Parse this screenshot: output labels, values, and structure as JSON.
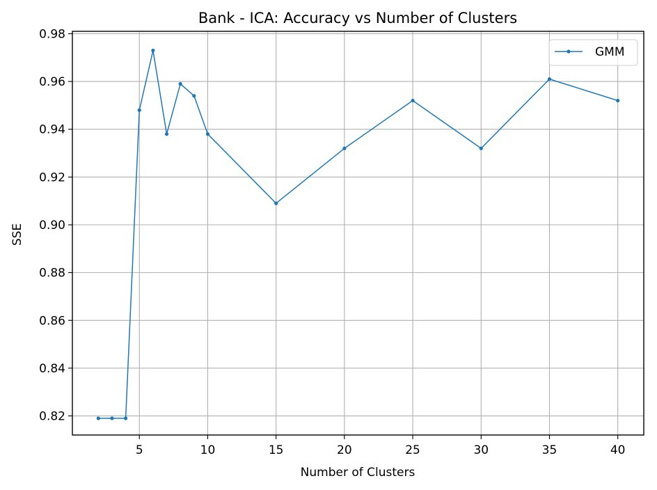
{
  "chart_data": {
    "type": "line",
    "title": "Bank - ICA: Accuracy vs Number of Clusters",
    "xlabel": "Number of Clusters",
    "ylabel": "SSE",
    "xlim": [
      0.1,
      41.9
    ],
    "ylim": [
      0.812,
      0.981
    ],
    "xticks": [
      5,
      10,
      15,
      20,
      25,
      30,
      35,
      40
    ],
    "yticks": [
      0.82,
      0.84,
      0.86,
      0.88,
      0.9,
      0.92,
      0.94,
      0.96,
      0.98
    ],
    "ytick_labels": [
      "0.82",
      "0.84",
      "0.86",
      "0.88",
      "0.90",
      "0.92",
      "0.94",
      "0.96",
      "0.98"
    ],
    "grid": true,
    "legend_position": "top-right",
    "series": [
      {
        "name": "GMM",
        "color": "#1f77b4",
        "x": [
          2,
          3,
          4,
          5,
          6,
          7,
          8,
          9,
          10,
          15,
          20,
          25,
          30,
          35,
          40
        ],
        "y": [
          0.819,
          0.819,
          0.819,
          0.948,
          0.973,
          0.938,
          0.959,
          0.954,
          0.938,
          0.909,
          0.932,
          0.952,
          0.932,
          0.961,
          0.952
        ]
      }
    ]
  }
}
